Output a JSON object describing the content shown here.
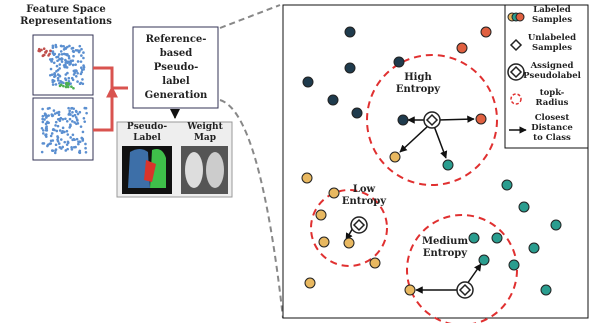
{
  "left_panel": {
    "title": [
      "Feature Space",
      "Representations"
    ]
  },
  "generation_box": {
    "lines": [
      "Reference-",
      "based",
      "Pseudo-",
      "label",
      "Generation"
    ]
  },
  "outputs": {
    "pseudo_label": [
      "Pseudo-",
      "Label"
    ],
    "weight_map": [
      "Weight",
      "Map"
    ]
  },
  "regions": [
    {
      "label": [
        "High",
        "Entropy"
      ]
    },
    {
      "label": [
        "Low",
        "Entropy"
      ]
    },
    {
      "label": [
        "Medium",
        "Entropy"
      ]
    }
  ],
  "legend": {
    "items": [
      {
        "label": [
          "Labeled",
          "Samples"
        ]
      },
      {
        "label": [
          "Unlabeled",
          "Samples"
        ]
      },
      {
        "label": [
          "Assigned",
          "Pseudolabel"
        ]
      },
      {
        "label": [
          "topk-",
          "Radius"
        ]
      },
      {
        "label": [
          "Closest",
          "Distance",
          "to Class"
        ]
      }
    ]
  }
}
